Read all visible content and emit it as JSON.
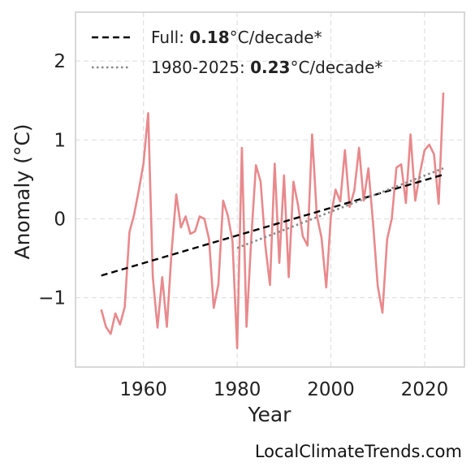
{
  "chart_data": {
    "type": "line",
    "xlabel": "Year",
    "ylabel": "Anomaly (°C)",
    "xlim": [
      1945.5,
      2028.5
    ],
    "ylim": [
      -1.88,
      2.62
    ],
    "xticks": [
      1960,
      1980,
      2000,
      2020
    ],
    "yticks": [
      -1,
      0,
      1,
      2
    ],
    "ytick_labels": [
      "−1",
      "0",
      "1",
      "2"
    ],
    "grid": true,
    "legend_position": "top-left",
    "colors": {
      "series": "#e8898c",
      "full_trend": "#000000",
      "recent_trend": "#888888"
    },
    "series": [
      {
        "x": [
          1951,
          1952,
          1953,
          1954,
          1955,
          1956,
          1957,
          1958,
          1959,
          1960,
          1961,
          1962,
          1963,
          1964,
          1965,
          1966,
          1967,
          1968,
          1969,
          1970,
          1971,
          1972,
          1973,
          1974,
          1975,
          1976,
          1977,
          1978,
          1979,
          1980,
          1981,
          1982,
          1983,
          1984,
          1985,
          1986,
          1987,
          1988,
          1989,
          1990,
          1991,
          1992,
          1993,
          1994,
          1995,
          1996,
          1997,
          1998,
          1999,
          2000,
          2001,
          2002,
          2003,
          2004,
          2005,
          2006,
          2007,
          2008,
          2009,
          2010,
          2011,
          2012,
          2013,
          2014,
          2015,
          2016,
          2017,
          2018,
          2019,
          2020,
          2021,
          2022,
          2023,
          2024
        ],
        "values": [
          -1.15,
          -1.37,
          -1.46,
          -1.2,
          -1.34,
          -1.12,
          -0.17,
          0.05,
          0.36,
          0.7,
          1.34,
          -0.74,
          -1.38,
          -0.74,
          -1.37,
          -0.42,
          0.31,
          -0.11,
          0.03,
          -0.19,
          -0.16,
          0.03,
          0.0,
          -0.26,
          -1.13,
          -0.83,
          0.23,
          0.04,
          -0.28,
          -1.64,
          0.9,
          -1.37,
          -0.26,
          0.68,
          0.47,
          -0.33,
          -0.84,
          0.7,
          -0.56,
          0.55,
          -0.74,
          0.47,
          0.17,
          -0.22,
          -0.34,
          1.07,
          0.04,
          -0.24,
          -0.87,
          0.03,
          0.37,
          0.22,
          0.87,
          0.15,
          0.36,
          0.9,
          0.23,
          0.64,
          -0.06,
          -0.85,
          -1.19,
          -0.26,
          0.0,
          0.65,
          0.69,
          0.2,
          1.07,
          0.23,
          0.58,
          0.87,
          0.94,
          0.82,
          0.19,
          1.6
        ]
      }
    ],
    "trends": [
      {
        "label_prefix": "Full: ",
        "label_value": "0.18",
        "label_suffix": "°C/decade*",
        "style": "dashed",
        "x": [
          1951,
          2024
        ],
        "y": [
          -0.72,
          0.56
        ]
      },
      {
        "label_prefix": "1980-2025: ",
        "label_value": "0.23",
        "label_suffix": "°C/decade*",
        "style": "dotted",
        "x": [
          1980,
          2024
        ],
        "y": [
          -0.37,
          0.64
        ]
      }
    ]
  },
  "watermark": "LocalClimateTrends.com"
}
